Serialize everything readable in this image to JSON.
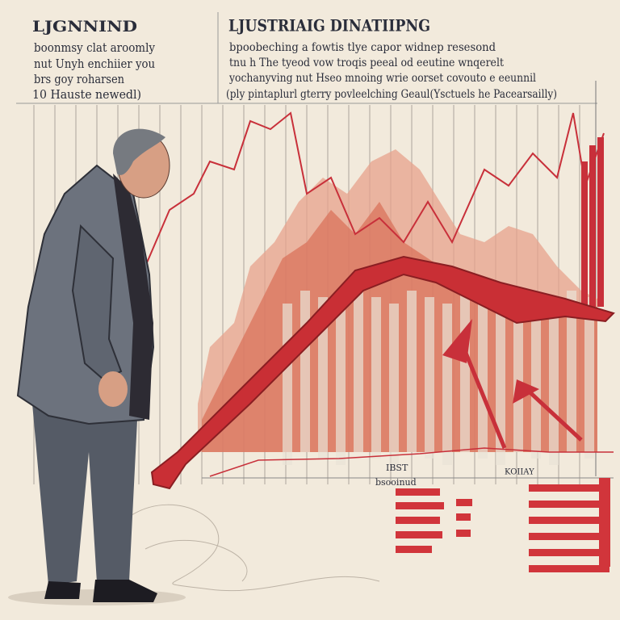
{
  "left_note": {
    "title": "LJGNNIND",
    "lines": [
      "boonmsy clat aroomly",
      "nut Unyh enchiier you",
      "brs goy roharsen",
      "10 Hauste newedl)"
    ]
  },
  "main_note": {
    "title": "LJUSTRIAIG DINATIIPNG",
    "lines": [
      "bpoobeching a fowtis tlye capor widnep resesond",
      "tnu h The tyeod vow troqis peeal od eeutine wnqerelt",
      "yochanyving nut Hseo mnoing wrie oorset covouto e eeunnil",
      "(ply pintaplurl gterry povleelching Geaul(Ysctuels he Pacearsailly)"
    ]
  },
  "chart_labels": [
    "IBST",
    "bsooinud",
    "KOIIAY"
  ]
}
